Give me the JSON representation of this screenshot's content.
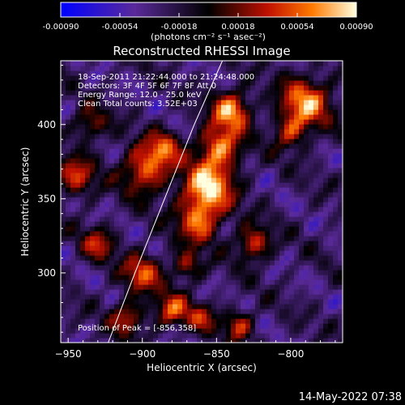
{
  "chart_data": {
    "type": "heatmap",
    "title": "Reconstructed RHESSI Image",
    "xlabel": "Heliocentric X (arcsec)",
    "ylabel": "Heliocentric Y (arcsec)",
    "xlim": [
      -955,
      -765
    ],
    "ylim": [
      253,
      443
    ],
    "x_ticks": [
      -950,
      -900,
      -850,
      -800
    ],
    "y_ticks": [
      300,
      350,
      400
    ],
    "colorbar": {
      "min": -0.0009,
      "max": 0.0009,
      "ticks": [
        "-0.00090",
        "-0.00054",
        "-0.00018",
        "0.00018",
        "0.00054",
        "0.00090"
      ],
      "units": "(photons cm⁻² s⁻¹ asec⁻²)"
    },
    "annotations": [
      "18-Sep-2011 21:22:44.000 to 21:24:48.000",
      "Detectors: 3F 4F 5F 6F 7F 8F Att 0",
      "Energy Range: 12.0 - 25.0 keV",
      "Clean     Total counts: 3.52E+03"
    ],
    "peak_label": "Position of Peak = [-856,358]",
    "peak": [
      -856,
      358
    ],
    "limb_curve": [
      [
        -923,
        253
      ],
      [
        -905,
        300
      ],
      [
        -885,
        350
      ],
      [
        -865,
        400
      ],
      [
        -846,
        443
      ]
    ],
    "blobs": [
      [
        -856,
        358,
        12,
        1.0
      ],
      [
        -848,
        385,
        10,
        0.85
      ],
      [
        -840,
        410,
        9,
        0.9
      ],
      [
        -862,
        335,
        10,
        0.75
      ],
      [
        -898,
        370,
        11,
        0.8
      ],
      [
        -885,
        385,
        8,
        0.6
      ],
      [
        -790,
        415,
        12,
        0.85
      ],
      [
        -800,
        395,
        8,
        0.55
      ],
      [
        -825,
        320,
        8,
        0.7
      ],
      [
        -900,
        300,
        9,
        0.7
      ],
      [
        -880,
        275,
        8,
        0.7
      ],
      [
        -835,
        265,
        7,
        0.6
      ],
      [
        -945,
        365,
        9,
        0.65
      ],
      [
        -935,
        400,
        8,
        0.5
      ],
      [
        -910,
        270,
        8,
        0.6
      ],
      [
        -870,
        305,
        7,
        0.55
      ],
      [
        -860,
        270,
        7,
        0.5
      ],
      [
        -930,
        320,
        8,
        0.55
      ]
    ]
  },
  "footer": {
    "timestamp": "14-May-2022 07:38"
  }
}
